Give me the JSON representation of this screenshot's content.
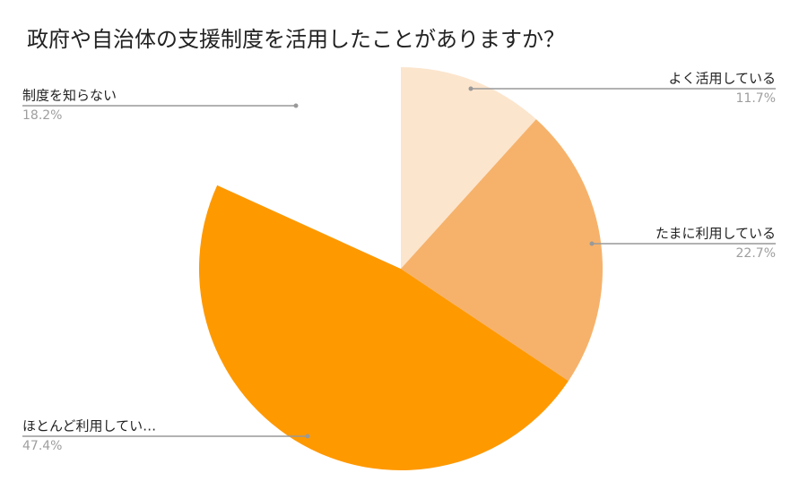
{
  "chart_data": {
    "type": "pie",
    "title": "政府や自治体の支援制度を活用したことがありますか？",
    "categories": [
      "よく活用している",
      "たまに利用している",
      "ほとんど利用してい…",
      "制度を知らない"
    ],
    "values": [
      11.7,
      22.7,
      47.4,
      18.2
    ],
    "value_labels": [
      "11.7%",
      "22.7%",
      "47.4%",
      "18.2%"
    ],
    "colors": [
      "#fce5cd",
      "#f6b26b",
      "#ff9900",
      "#ffffff"
    ]
  }
}
